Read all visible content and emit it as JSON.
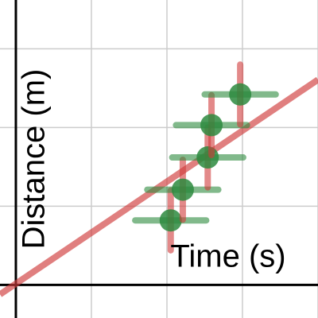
{
  "chart_data": {
    "type": "scatter",
    "x_label": "Time (s)",
    "y_label": "Distance (m)",
    "xlim": [
      -0.21,
      4.0
    ],
    "ylim": [
      -0.42,
      3.62
    ],
    "xticks": [
      0,
      1,
      2,
      3,
      4
    ],
    "yticks": [
      0,
      1,
      2,
      3
    ],
    "grid": true,
    "series": [
      {
        "color": "#2d8a3e",
        "error_color": "#d03b3b",
        "x": [
          2.05,
          2.21,
          2.54,
          2.59,
          2.97
        ],
        "values": [
          0.82,
          1.21,
          1.62,
          2.03,
          2.42
        ],
        "xerr": [
          0.47,
          0.47,
          0.47,
          0.47,
          0.47
        ],
        "yerr": [
          0.38,
          0.38,
          0.38,
          0.38,
          0.38
        ]
      }
    ],
    "fit": {
      "slope": 0.648,
      "intercept": 0.016,
      "color": "#d03b3b"
    }
  }
}
